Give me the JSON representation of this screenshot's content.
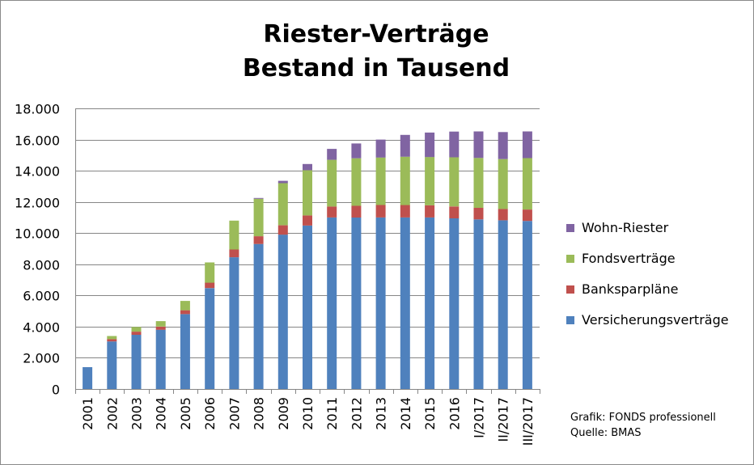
{
  "title_line1": "Riester-Verträge",
  "title_line2": "Bestand in Tausend",
  "source_line1": "Grafik: FONDS professionell",
  "source_line2": "Quelle: BMAS",
  "chart_data": {
    "type": "bar",
    "stacked": true,
    "title": "Riester-Verträge Bestand in Tausend",
    "xlabel": "",
    "ylabel": "",
    "ylim": [
      0,
      18000
    ],
    "yticks": [
      0,
      2000,
      4000,
      6000,
      8000,
      10000,
      12000,
      14000,
      16000,
      18000
    ],
    "ytick_labels": [
      "0",
      "2.000",
      "4.000",
      "6.000",
      "8.000",
      "10.000",
      "12.000",
      "14.000",
      "16.000",
      "18.000"
    ],
    "grid": true,
    "legend_position": "right",
    "categories": [
      "2001",
      "2002",
      "2003",
      "2004",
      "2005",
      "2006",
      "2007",
      "2008",
      "2009",
      "2010",
      "2011",
      "2012",
      "2013",
      "2014",
      "2015",
      "2016",
      "I/2017",
      "II/2017",
      "III/2017"
    ],
    "series": [
      {
        "name": "Versicherungsverträge",
        "color": "#4f81bd",
        "values": [
          1400,
          3050,
          3480,
          3800,
          4800,
          6470,
          8450,
          9300,
          9900,
          10480,
          11000,
          11000,
          11000,
          11000,
          11000,
          10950,
          10880,
          10820,
          10780
        ]
      },
      {
        "name": "Banksparpläne",
        "color": "#c0504d",
        "values": [
          0,
          150,
          200,
          200,
          250,
          350,
          500,
          500,
          600,
          650,
          700,
          750,
          800,
          800,
          780,
          760,
          740,
          730,
          730
        ]
      },
      {
        "name": "Fondsverträge",
        "color": "#9bbb59",
        "values": [
          0,
          200,
          300,
          350,
          600,
          1300,
          1850,
          2400,
          2700,
          2900,
          3000,
          3050,
          3050,
          3100,
          3100,
          3150,
          3200,
          3200,
          3300
        ]
      },
      {
        "name": "Wohn-Riester",
        "color": "#8064a2",
        "values": [
          0,
          0,
          0,
          0,
          0,
          0,
          0,
          50,
          150,
          400,
          700,
          950,
          1150,
          1400,
          1570,
          1650,
          1700,
          1730,
          1710
        ]
      }
    ],
    "legend_order": [
      "Wohn-Riester",
      "Fondsverträge",
      "Banksparpläne",
      "Versicherungsverträge"
    ]
  }
}
